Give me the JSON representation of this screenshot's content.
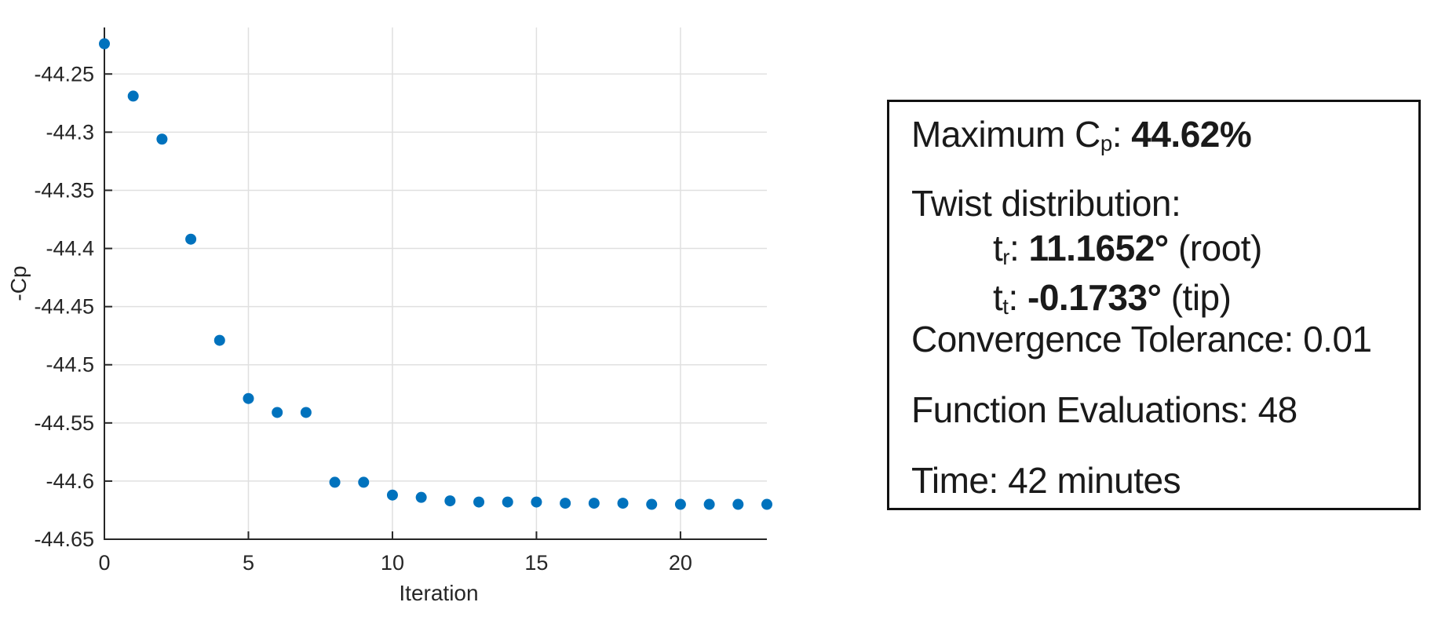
{
  "chart_data": {
    "type": "scatter",
    "title": "",
    "xlabel": "Iteration",
    "ylabel": "-Cp",
    "x": [
      0,
      1,
      2,
      3,
      4,
      5,
      6,
      7,
      8,
      9,
      10,
      11,
      12,
      13,
      14,
      15,
      16,
      17,
      18,
      19,
      20,
      21,
      22,
      23
    ],
    "y": [
      -44.224,
      -44.269,
      -44.306,
      -44.392,
      -44.479,
      -44.529,
      -44.541,
      -44.541,
      -44.601,
      -44.601,
      -44.612,
      -44.614,
      -44.617,
      -44.618,
      -44.618,
      -44.618,
      -44.619,
      -44.619,
      -44.619,
      -44.62,
      -44.62,
      -44.62,
      -44.62,
      -44.62
    ],
    "xlim": [
      0,
      23
    ],
    "ylim": [
      -44.65,
      -44.21
    ],
    "xticks": [
      0,
      5,
      10,
      15,
      20
    ],
    "xtick_labels": [
      "0",
      "5",
      "10",
      "15",
      "20"
    ],
    "yticks": [
      -44.25,
      -44.3,
      -44.35,
      -44.4,
      -44.45,
      -44.5,
      -44.55,
      -44.6,
      -44.65
    ],
    "ytick_labels": [
      "-44.25",
      "-44.3",
      "-44.35",
      "-44.4",
      "-44.45",
      "-44.5",
      "-44.55",
      "-44.6",
      "-44.65"
    ],
    "grid": true,
    "legend": null,
    "marker_color": "#0072BD",
    "grid_color": "#e0e0e0",
    "axis_color": "#262626",
    "tick_font_size": 27,
    "label_font_size": 28
  },
  "info_box": {
    "max_cp": {
      "prefix": "Maximum C",
      "sub": "p",
      "sep": ": ",
      "value": "44.62%"
    },
    "twist_heading": "Twist distribution:",
    "twist_root": {
      "prefix": "t",
      "sub": "r",
      "sep": ": ",
      "value": "11.1652°",
      "suffix": " (root)"
    },
    "twist_tip": {
      "prefix": "t",
      "sub": "t",
      "sep": ": ",
      "value": "-0.1733°",
      "suffix": " (tip)"
    },
    "tolerance": "Convergence Tolerance: 0.01",
    "evaluations": "Function Evaluations: 48",
    "time": "Time: 42 minutes"
  }
}
